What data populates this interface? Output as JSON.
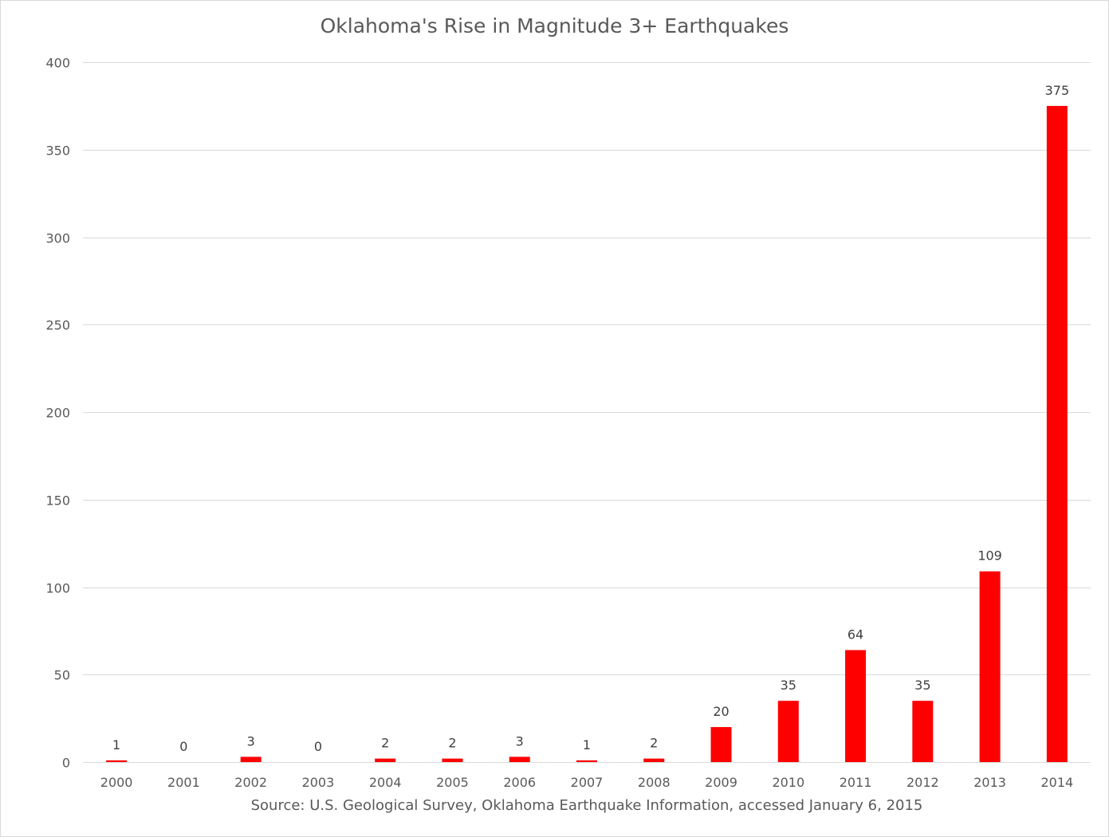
{
  "chart_data": {
    "type": "bar",
    "title": "Oklahoma's Rise in Magnitude 3+ Earthquakes",
    "note": "Source: U.S. Geological Survey, Oklahoma Earthquake Information, accessed January 6, 2015",
    "xlabel": "",
    "ylabel": "",
    "categories": [
      "2000",
      "2001",
      "2002",
      "2003",
      "2004",
      "2005",
      "2006",
      "2007",
      "2008",
      "2009",
      "2010",
      "2011",
      "2012",
      "2013",
      "2014"
    ],
    "values": [
      1,
      0,
      3,
      0,
      2,
      2,
      3,
      1,
      2,
      20,
      35,
      64,
      35,
      109,
      375
    ],
    "data_labels": [
      "1",
      "0",
      "3",
      "0",
      "2",
      "2",
      "3",
      "1",
      "2",
      "20",
      "35",
      "64",
      "35",
      "109",
      "375"
    ],
    "ylim": [
      0,
      400
    ],
    "yticks": [
      0,
      50,
      100,
      150,
      200,
      250,
      300,
      350,
      400
    ],
    "ytick_labels": [
      "0",
      "50",
      "100",
      "150",
      "200",
      "250",
      "300",
      "350",
      "400"
    ],
    "grid": true,
    "legend": "none",
    "colors": {
      "bar": "#ff0000",
      "grid": "#d9d9d9",
      "text": "#595959"
    }
  }
}
